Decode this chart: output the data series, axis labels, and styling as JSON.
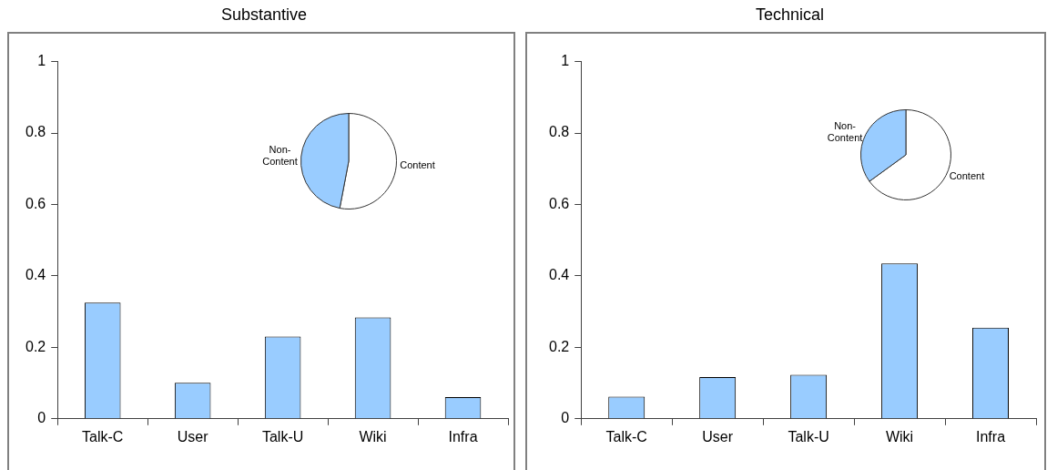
{
  "chart_data": [
    {
      "type": "bar",
      "title": "Substantive",
      "categories": [
        "Talk-C",
        "User",
        "Talk-U",
        "Wiki",
        "Infra"
      ],
      "values": [
        0.325,
        0.101,
        0.23,
        0.284,
        0.061
      ],
      "color": "#99ccff",
      "ylim": [
        0,
        1
      ],
      "yticks": [
        0,
        0.2,
        0.4,
        0.6,
        0.8,
        1
      ],
      "grid": false,
      "legend": false
    },
    {
      "type": "pie",
      "categories": [
        "Content",
        "Non-Content"
      ],
      "values": [
        53,
        47
      ],
      "colors": [
        "#ffffff",
        "#99ccff"
      ],
      "legend": false
    },
    {
      "type": "bar",
      "title": "Technical",
      "categories": [
        "Talk-C",
        "User",
        "Talk-U",
        "Wiki",
        "Infra"
      ],
      "values": [
        0.062,
        0.117,
        0.123,
        0.435,
        0.255
      ],
      "color": "#99ccff",
      "ylim": [
        0,
        1
      ],
      "yticks": [
        0,
        0.2,
        0.4,
        0.6,
        0.8,
        1
      ],
      "grid": false,
      "legend": false
    },
    {
      "type": "pie",
      "categories": [
        "Content",
        "Non-Content"
      ],
      "values": [
        65,
        35
      ],
      "colors": [
        "#ffffff",
        "#99ccff"
      ],
      "legend": false
    }
  ]
}
